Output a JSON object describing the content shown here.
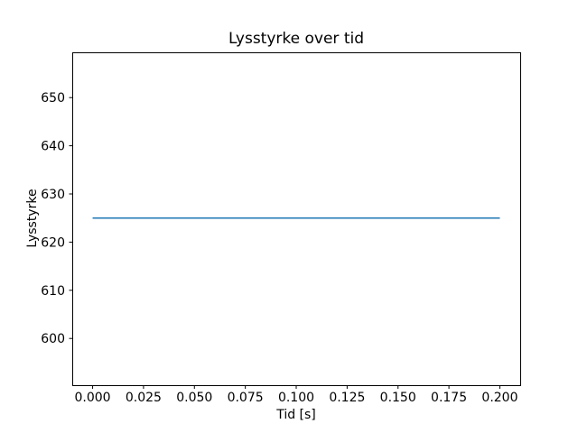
{
  "chart_data": {
    "type": "line",
    "title": "Lysstyrke over tid",
    "xlabel": "Tid [s]",
    "ylabel": "Lysstyrke",
    "xlim": [
      -0.01,
      0.21
    ],
    "ylim": [
      590.3,
      659.4
    ],
    "xticks": [
      0.0,
      0.025,
      0.05,
      0.075,
      0.1,
      0.125,
      0.15,
      0.175,
      0.2
    ],
    "xtick_labels": [
      "0.000",
      "0.025",
      "0.050",
      "0.075",
      "0.100",
      "0.125",
      "0.150",
      "0.175",
      "0.200"
    ],
    "yticks": [
      600,
      610,
      620,
      630,
      640,
      650
    ],
    "ytick_labels": [
      "600",
      "610",
      "620",
      "630",
      "640",
      "650"
    ],
    "grid": false,
    "legend": null,
    "background_color": "#ffffff",
    "axes_edge_color": "#000000",
    "series": [
      {
        "name": "lysstyrke",
        "color": "#1f77b4",
        "x": [
          0.0,
          0.2
        ],
        "y": [
          625,
          625
        ]
      }
    ]
  }
}
